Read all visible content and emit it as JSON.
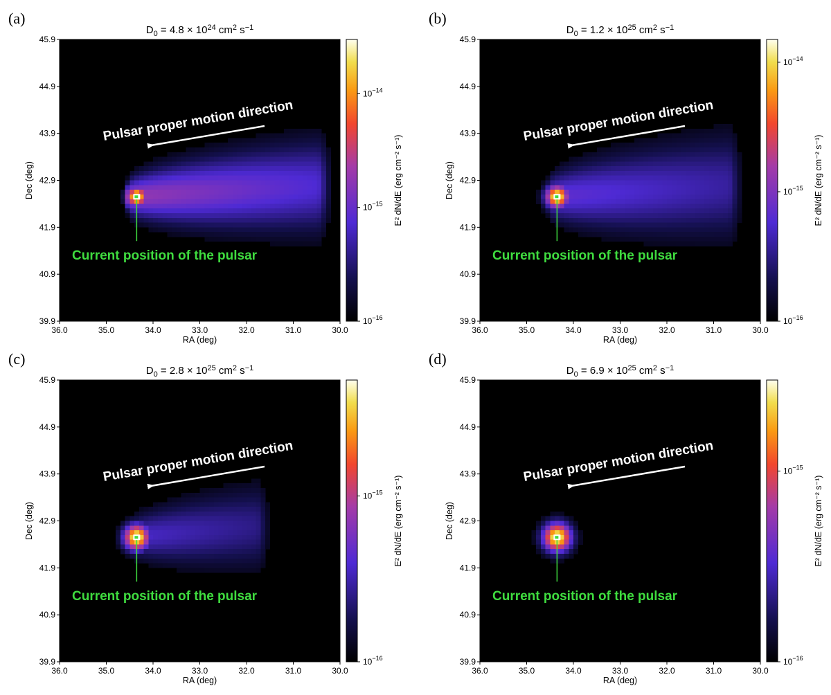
{
  "chart_data": [
    {
      "type": "heatmap",
      "panel_label": "(a)",
      "title_main": "D",
      "title_sub": "0",
      "title_mid": " = 4.8 × 10",
      "title_exp": "24",
      "title_units": " cm",
      "title_units_sup": "2",
      "title_units_tail": " s",
      "title_units_tail_sup": "−1",
      "xlabel": "RA (deg)",
      "ylabel": "Dec (deg)",
      "xlim": [
        36.0,
        30.0
      ],
      "ylim": [
        39.9,
        45.9
      ],
      "xticks": [
        "36.0",
        "35.0",
        "34.0",
        "33.0",
        "32.0",
        "31.0",
        "30.0"
      ],
      "yticks": [
        "39.9",
        "40.9",
        "41.9",
        "42.9",
        "43.9",
        "44.9",
        "45.9"
      ],
      "colorbar_label": "E² dN/dE (erg cm⁻² s⁻¹)",
      "colorbar_ticks": [
        {
          "label": "10",
          "exp": "−14",
          "value": 1e-14
        },
        {
          "label": "10",
          "exp": "−15",
          "value": 1e-15
        },
        {
          "label": "10",
          "exp": "−16",
          "value": 1e-16
        }
      ],
      "colorbar_range": [
        1e-16,
        3e-14
      ],
      "pulsar_ra": 34.35,
      "pulsar_dec": 42.55,
      "tail_end_ra": 30.5,
      "tail_width_deg": 0.55,
      "peak_level": 1.0,
      "tail_level": 0.52,
      "halo_width_deg": 0.15,
      "arrow_text": "Pulsar proper motion direction",
      "position_text": "Current position of the pulsar"
    },
    {
      "type": "heatmap",
      "panel_label": "(b)",
      "title_main": "D",
      "title_sub": "0",
      "title_mid": " = 1.2 × 10",
      "title_exp": "25",
      "title_units": " cm",
      "title_units_sup": "2",
      "title_units_tail": " s",
      "title_units_tail_sup": "−1",
      "xlabel": "RA (deg)",
      "ylabel": "Dec (deg)",
      "xlim": [
        36.0,
        30.0
      ],
      "ylim": [
        39.9,
        45.9
      ],
      "xticks": [
        "36.0",
        "35.0",
        "34.0",
        "33.0",
        "32.0",
        "31.0",
        "30.0"
      ],
      "yticks": [
        "39.9",
        "40.9",
        "41.9",
        "42.9",
        "43.9",
        "44.9",
        "45.9"
      ],
      "colorbar_label": "E² dN/dE (erg cm⁻² s⁻¹)",
      "colorbar_ticks": [
        {
          "label": "10",
          "exp": "−14",
          "value": 1e-14
        },
        {
          "label": "10",
          "exp": "−15",
          "value": 1e-15
        },
        {
          "label": "10",
          "exp": "−16",
          "value": 1e-16
        }
      ],
      "colorbar_range": [
        1e-16,
        1.5e-14
      ],
      "pulsar_ra": 34.35,
      "pulsar_dec": 42.55,
      "tail_end_ra": 30.7,
      "tail_width_deg": 0.62,
      "peak_level": 1.0,
      "tail_level": 0.4,
      "halo_width_deg": 0.18,
      "arrow_text": "Pulsar proper motion direction",
      "position_text": "Current position of the pulsar"
    },
    {
      "type": "heatmap",
      "panel_label": "(c)",
      "title_main": "D",
      "title_sub": "0",
      "title_mid": " = 2.8 × 10",
      "title_exp": "25",
      "title_units": " cm",
      "title_units_sup": "2",
      "title_units_tail": " s",
      "title_units_tail_sup": "−1",
      "xlabel": "RA (deg)",
      "ylabel": "Dec (deg)",
      "xlim": [
        36.0,
        30.0
      ],
      "ylim": [
        39.9,
        45.9
      ],
      "xticks": [
        "36.0",
        "35.0",
        "34.0",
        "33.0",
        "32.0",
        "31.0",
        "30.0"
      ],
      "yticks": [
        "39.9",
        "40.9",
        "41.9",
        "42.9",
        "43.9",
        "44.9",
        "45.9"
      ],
      "colorbar_label": "E² dN/dE (erg cm⁻² s⁻¹)",
      "colorbar_ticks": [
        {
          "label": "10",
          "exp": "−15",
          "value": 1e-15
        },
        {
          "label": "10",
          "exp": "−16",
          "value": 1e-16
        }
      ],
      "colorbar_range": [
        1e-16,
        5e-15
      ],
      "pulsar_ra": 34.35,
      "pulsar_dec": 42.55,
      "tail_end_ra": 31.8,
      "tail_width_deg": 0.5,
      "peak_level": 1.0,
      "tail_level": 0.34,
      "halo_width_deg": 0.2,
      "arrow_text": "Pulsar proper motion direction",
      "position_text": "Current position of the pulsar"
    },
    {
      "type": "heatmap",
      "panel_label": "(d)",
      "title_main": "D",
      "title_sub": "0",
      "title_mid": " = 6.9 × 10",
      "title_exp": "25",
      "title_units": " cm",
      "title_units_sup": "2",
      "title_units_tail": " s",
      "title_units_tail_sup": "−1",
      "xlabel": "RA (deg)",
      "ylabel": "Dec (deg)",
      "xlim": [
        36.0,
        30.0
      ],
      "ylim": [
        39.9,
        45.9
      ],
      "xticks": [
        "36.0",
        "35.0",
        "34.0",
        "33.0",
        "32.0",
        "31.0",
        "30.0"
      ],
      "yticks": [
        "39.9",
        "40.9",
        "41.9",
        "42.9",
        "43.9",
        "44.9",
        "45.9"
      ],
      "colorbar_label": "E² dN/dE (erg cm⁻² s⁻¹)",
      "colorbar_ticks": [
        {
          "label": "10",
          "exp": "−15",
          "value": 1e-15
        },
        {
          "label": "10",
          "exp": "−16",
          "value": 1e-16
        }
      ],
      "colorbar_range": [
        1e-16,
        3e-15
      ],
      "pulsar_ra": 34.35,
      "pulsar_dec": 42.55,
      "tail_end_ra": 34.3,
      "tail_width_deg": 0.18,
      "peak_level": 1.0,
      "tail_level": 0.25,
      "halo_width_deg": 0.22,
      "arrow_text": "Pulsar proper motion direction",
      "position_text": "Current position of the pulsar"
    }
  ],
  "colors": {
    "background": "#000000",
    "pulsar_marker": "#3fdc3f",
    "arrow": "#ffffff"
  }
}
